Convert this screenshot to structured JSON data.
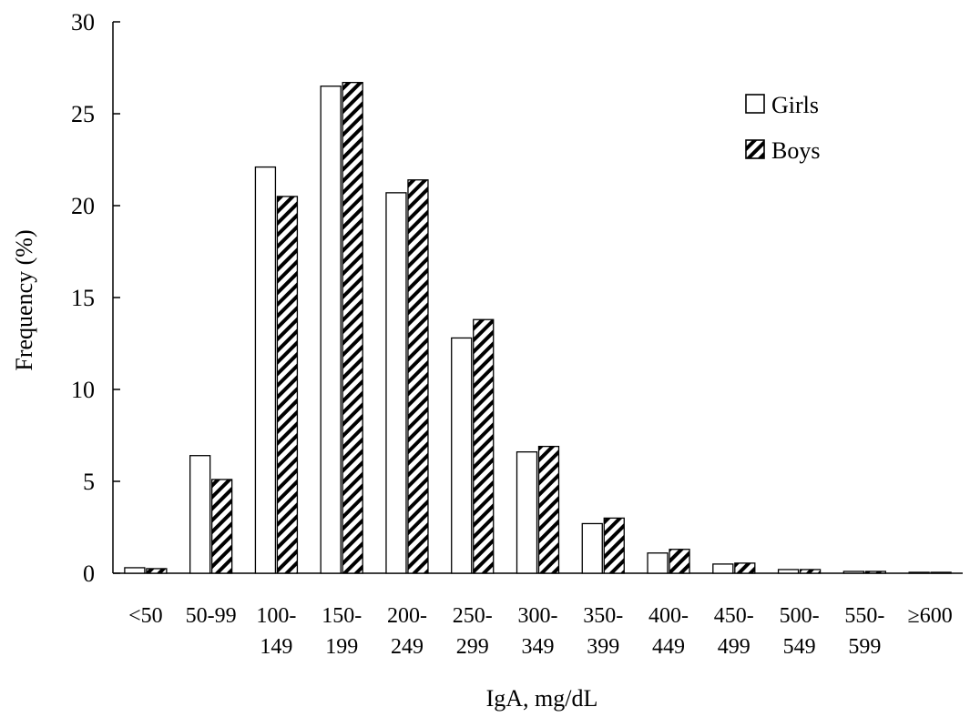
{
  "chart_data": {
    "type": "bar",
    "title": "",
    "xlabel": "IgA, mg/dL",
    "ylabel": "Frequency (%)",
    "ylim": [
      0,
      30
    ],
    "yticks": [
      "0",
      "5",
      "10",
      "15",
      "20",
      "25",
      "30"
    ],
    "grid": false,
    "legend_position": "top-right",
    "categories": [
      [
        "<50"
      ],
      [
        "50-99"
      ],
      [
        "100-",
        "149"
      ],
      [
        "150-",
        "199"
      ],
      [
        "200-",
        "249"
      ],
      [
        "250-",
        "299"
      ],
      [
        "300-",
        "349"
      ],
      [
        "350-",
        "399"
      ],
      [
        "400-",
        "449"
      ],
      [
        "450-",
        "499"
      ],
      [
        "500-",
        "549"
      ],
      [
        "550-",
        "599"
      ],
      [
        "≥600"
      ]
    ],
    "series": [
      {
        "name": "Girls",
        "pattern": "solid-white",
        "values": [
          0.3,
          6.4,
          22.1,
          26.5,
          20.7,
          12.8,
          6.6,
          2.7,
          1.1,
          0.5,
          0.2,
          0.1,
          0.05
        ]
      },
      {
        "name": "Boys",
        "pattern": "diagonal-hatch",
        "values": [
          0.25,
          5.1,
          20.5,
          26.7,
          21.4,
          13.8,
          6.9,
          3.0,
          1.3,
          0.55,
          0.2,
          0.1,
          0.05
        ]
      }
    ],
    "colors": {
      "bar_fill": "#ffffff",
      "stroke": "#000000",
      "hatch": "#000000"
    }
  }
}
